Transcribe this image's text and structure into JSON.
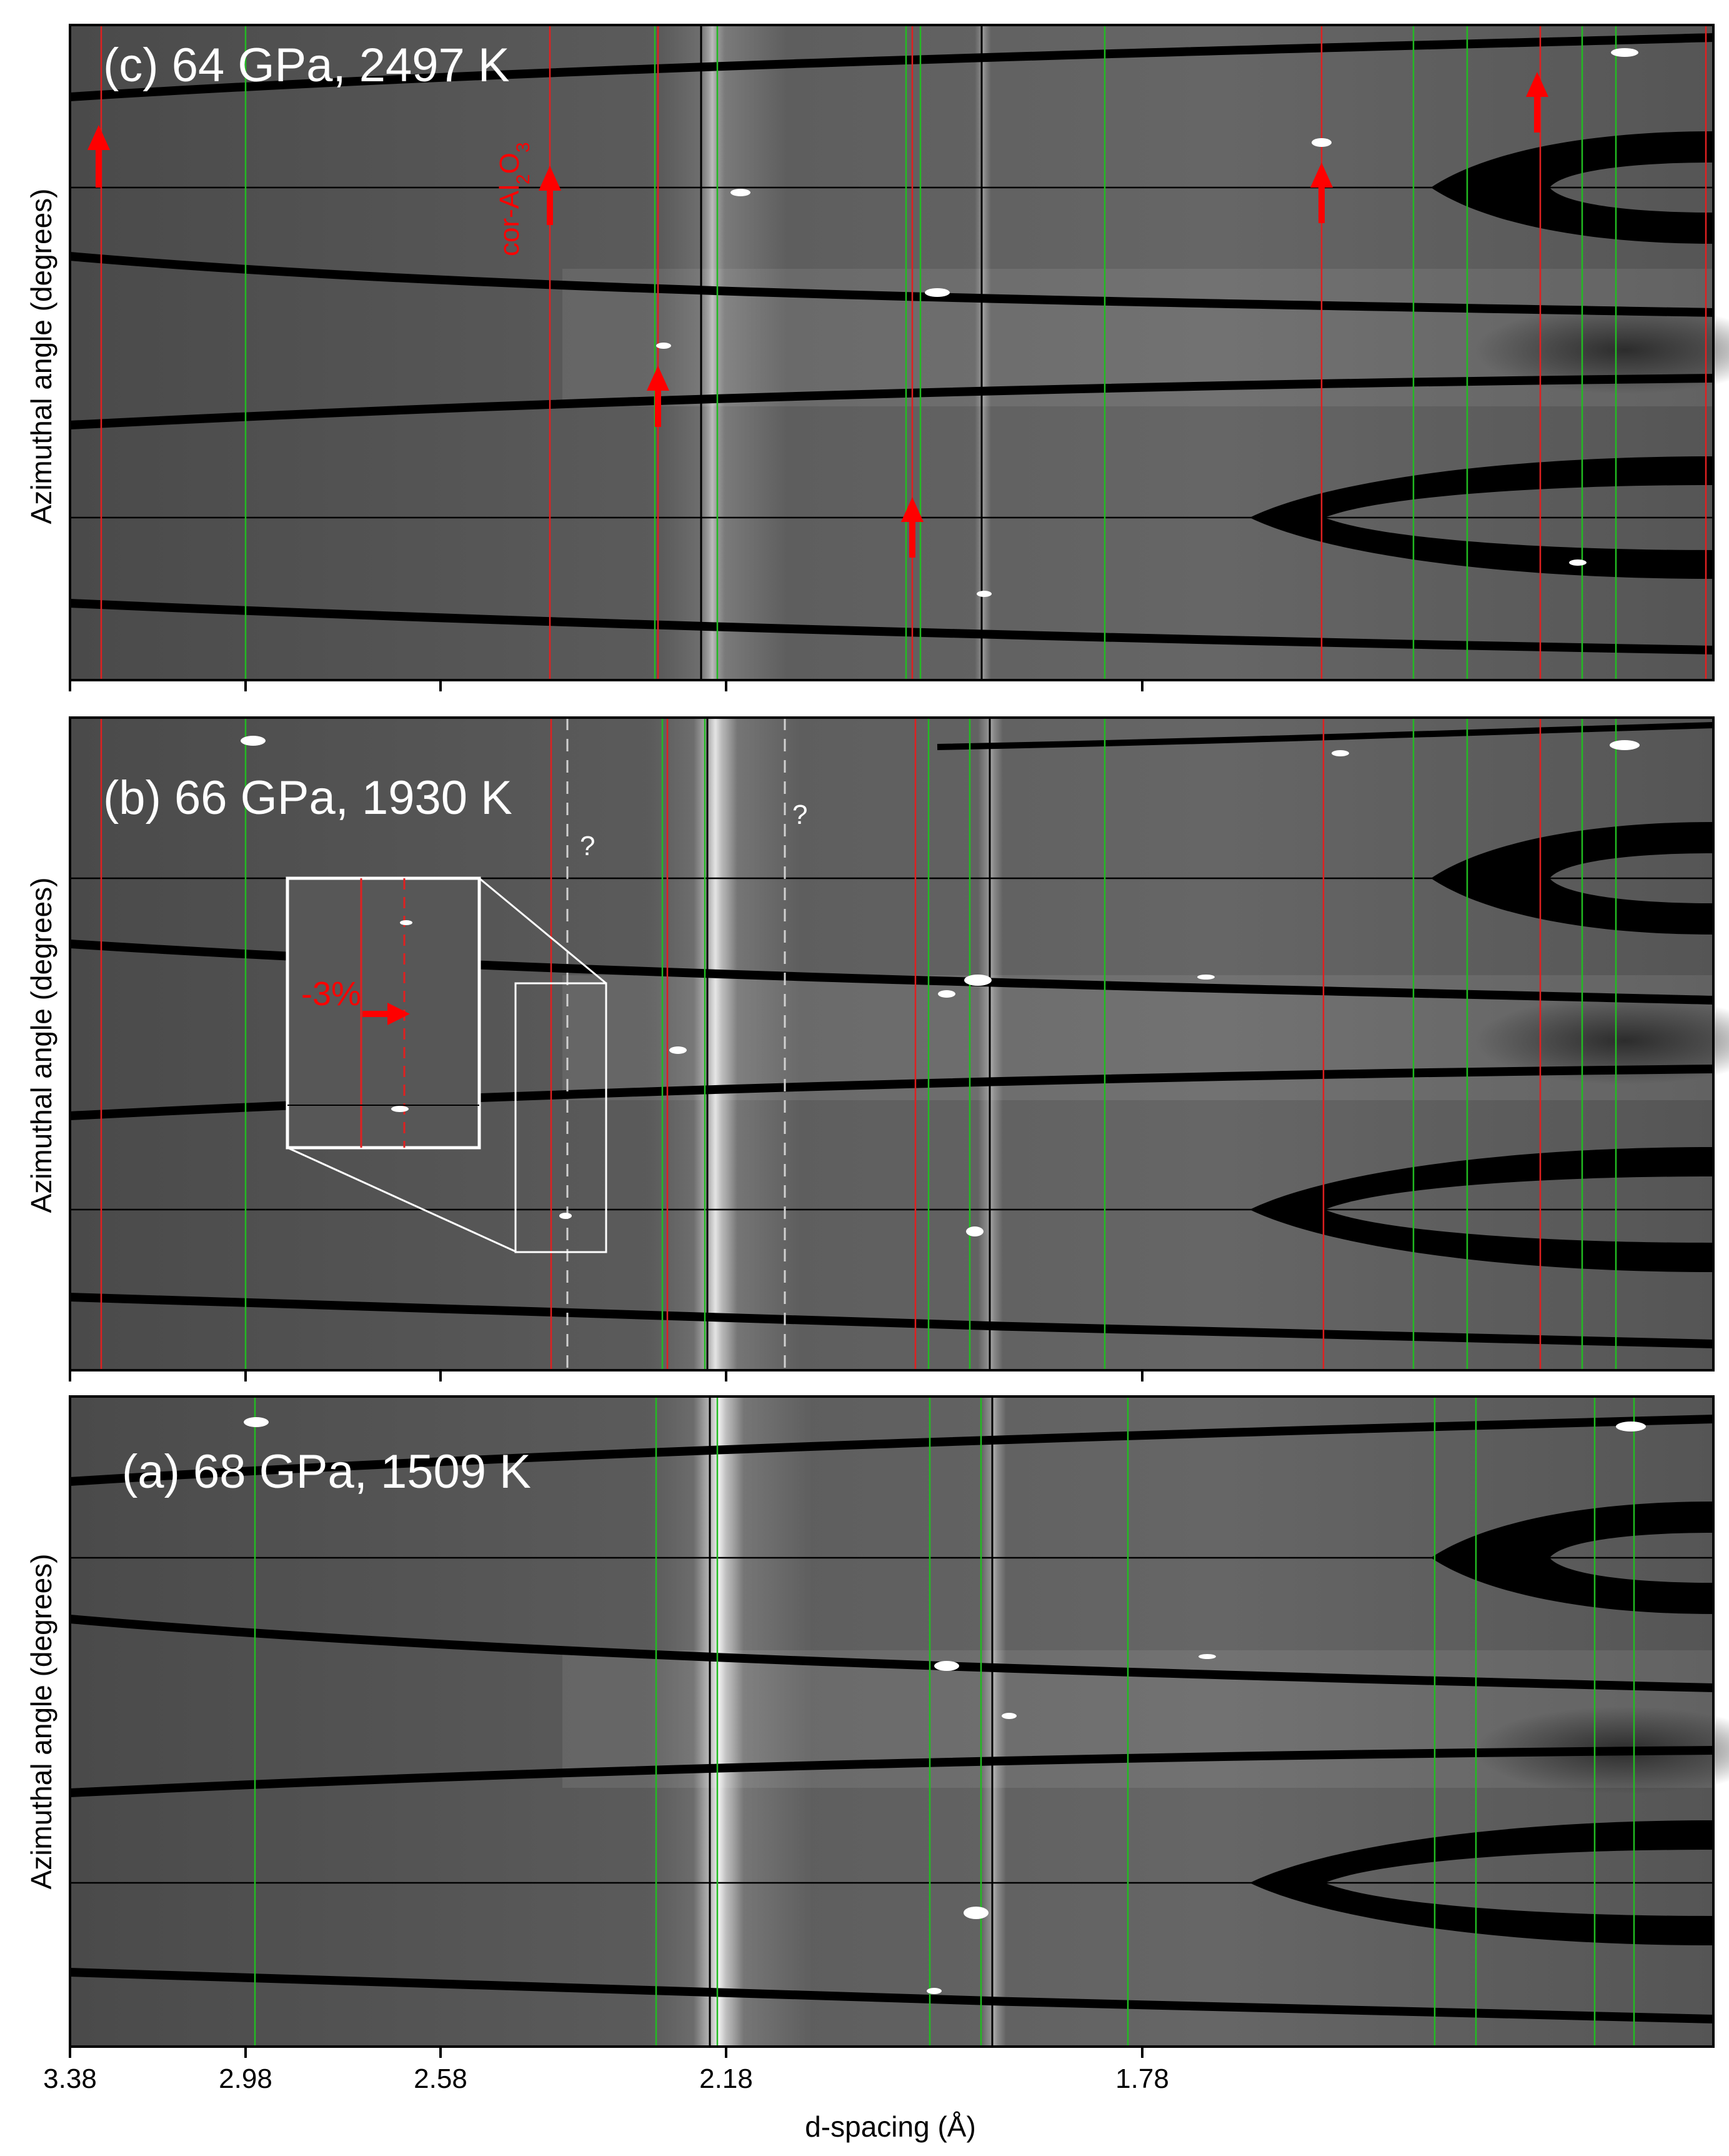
{
  "figure": {
    "xlabel": "d-spacing (Å)",
    "x_ticks": [
      "3.38",
      "2.98",
      "2.58",
      "2.18",
      "1.78"
    ],
    "panels": [
      {
        "id": "c",
        "title": "(c) 64 GPa,  2497 K",
        "ylabel": "Azimuthal angle (degrees)",
        "annotation": "cor-Al₂O₃",
        "annotation_base": "cor-Al",
        "annotation_sub1": "2",
        "annotation_mid": "O",
        "annotation_sub2": "3",
        "arrow_count": 7
      },
      {
        "id": "b",
        "title": "(b) 66 GPa,  1930 K",
        "ylabel": "Azimuthal angle (degrees)",
        "question_marks": [
          "?",
          "?"
        ],
        "inset_shift_label": "-3%"
      },
      {
        "id": "a",
        "title": "(a) 68 GPa,  1509 K",
        "ylabel": "Azimuthal angle (degrees)"
      }
    ],
    "colors": {
      "background": "#5a5a5a",
      "red_line": "#e02020",
      "green_line": "#22bb22",
      "arrow": "#ff0000",
      "mask": "#000000"
    }
  }
}
